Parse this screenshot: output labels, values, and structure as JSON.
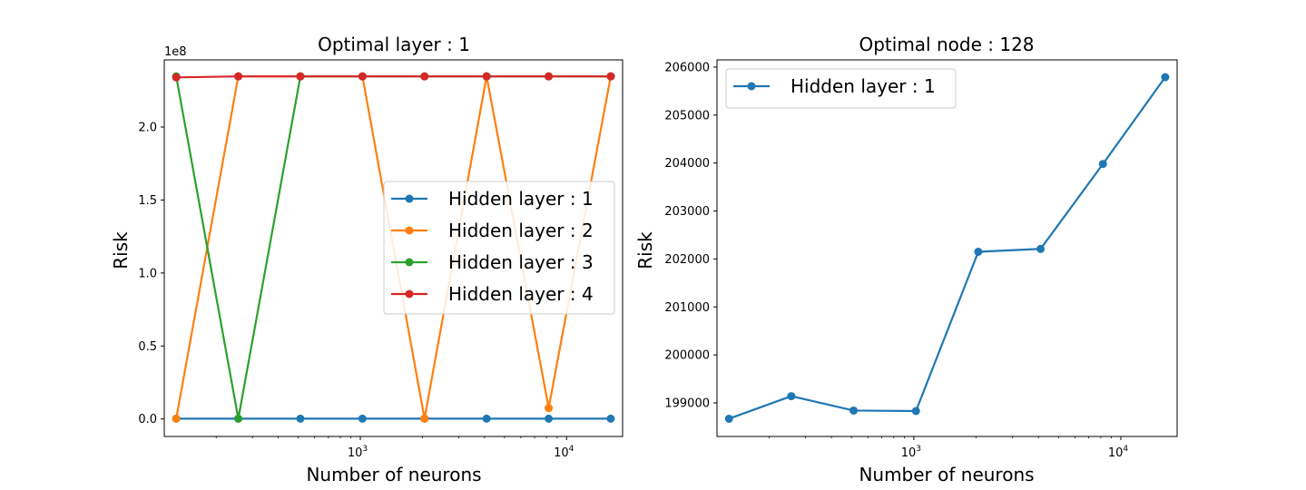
{
  "chart_data": [
    {
      "type": "line",
      "title": "Optimal layer$:$1",
      "title_display": "Optimal layer : 1",
      "xlabel": "Number of neurons",
      "ylabel": "Risk",
      "xscale": "log",
      "x_ticks": [
        "10^3",
        "10^4"
      ],
      "y_ticks": [
        "0.0",
        "0.5",
        "1.0",
        "1.5",
        "2.0"
      ],
      "y_offset_label": "1e8",
      "ylim": [
        -12000000,
        246000000
      ],
      "legend_position": "right-center",
      "grid": false,
      "x": [
        128,
        256,
        512,
        1024,
        2048,
        4096,
        8192,
        16384
      ],
      "series": [
        {
          "name": "Hidden layer : 1",
          "color": "#1f77b4",
          "values": [
            200000,
            200000,
            200000,
            200000,
            200000,
            200000,
            200000,
            200000
          ]
        },
        {
          "name": "Hidden layer : 2",
          "color": "#ff7f0e",
          "values": [
            200000,
            234700000,
            234700000,
            234700000,
            200000,
            234700000,
            7500000,
            234700000
          ]
        },
        {
          "name": "Hidden layer : 3",
          "color": "#2ca02c",
          "values": [
            234700000,
            200000,
            234700000,
            234700000,
            234700000,
            234700000,
            234700000,
            234700000
          ]
        },
        {
          "name": "Hidden layer : 4",
          "color": "#d62728",
          "values": [
            234000000,
            234700000,
            234700000,
            234700000,
            234700000,
            234700000,
            234700000,
            234700000
          ]
        }
      ]
    },
    {
      "type": "line",
      "title_display": "Optimal node : 128",
      "xlabel": "Number of neurons",
      "ylabel": "Risk",
      "xscale": "log",
      "x_ticks": [
        "10^3",
        "10^4"
      ],
      "y_ticks": [
        "199000",
        "200000",
        "201000",
        "202000",
        "203000",
        "204000",
        "205000",
        "206000"
      ],
      "ylim": [
        198300,
        206150
      ],
      "legend_position": "top-left",
      "grid": false,
      "x": [
        128,
        256,
        512,
        1024,
        2048,
        4096,
        8192,
        16384
      ],
      "series": [
        {
          "name": "Hidden layer : 1",
          "color": "#1f77b4",
          "values": [
            198670,
            199140,
            198840,
            198830,
            202150,
            202210,
            203980,
            205790
          ]
        }
      ]
    }
  ]
}
